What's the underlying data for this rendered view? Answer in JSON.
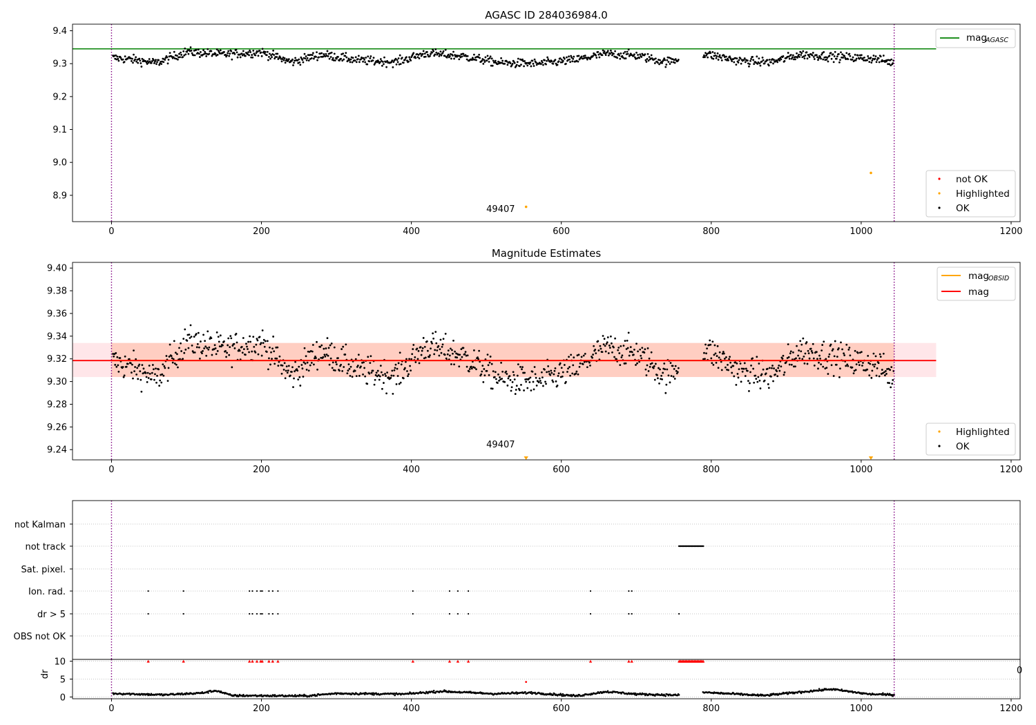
{
  "chart_data": [
    {
      "type": "scatter",
      "title": "AGASC ID 284036984.0",
      "xlim": [
        -52,
        1212
      ],
      "ylim": [
        8.82,
        9.42
      ],
      "xticks": [
        0,
        200,
        400,
        600,
        800,
        1000,
        1200
      ],
      "yticks": [
        8.9,
        9.0,
        9.1,
        9.2,
        9.3,
        9.4
      ],
      "vlines": [
        0,
        1044
      ],
      "hline": {
        "name": "mag_AGASC",
        "value": 9.345,
        "x_end": 1100,
        "color": "#008000"
      },
      "series": [
        {
          "name": "not OK",
          "color": "#ff0000",
          "points": []
        },
        {
          "name": "Highlighted",
          "color": "#ffa500",
          "points": [
            [
              553,
              8.865
            ],
            [
              1013,
              8.968
            ]
          ]
        },
        {
          "name": "OK",
          "color": "#000000",
          "profile": {
            "x_start": 2,
            "x_end": 1044,
            "gap": [
              757,
              789
            ],
            "scatter": 0.012,
            "levels": [
              [
                0,
                9.318
              ],
              [
                30,
                9.312
              ],
              [
                60,
                9.302
              ],
              [
                100,
                9.336
              ],
              [
                150,
                9.328
              ],
              [
                200,
                9.335
              ],
              [
                240,
                9.305
              ],
              [
                280,
                9.328
              ],
              [
                330,
                9.31
              ],
              [
                380,
                9.305
              ],
              [
                420,
                9.332
              ],
              [
                470,
                9.322
              ],
              [
                520,
                9.302
              ],
              [
                570,
                9.3
              ],
              [
                620,
                9.312
              ],
              [
                660,
                9.33
              ],
              [
                700,
                9.325
              ],
              [
                740,
                9.305
              ],
              [
                790,
                9.33
              ],
              [
                840,
                9.308
              ],
              [
                880,
                9.305
              ],
              [
                920,
                9.328
              ],
              [
                960,
                9.322
              ],
              [
                990,
                9.318
              ],
              [
                1020,
                9.315
              ],
              [
                1044,
                9.302
              ]
            ]
          }
        }
      ],
      "annotations": [
        {
          "text": "49407",
          "x": 500,
          "y": 8.83
        }
      ],
      "legend_line": {
        "label": "mag",
        "subscript": "AGASC",
        "position": "upper right"
      },
      "legend_points": {
        "labels": [
          "not OK",
          "Highlighted",
          "OK"
        ],
        "position": "lower right"
      }
    },
    {
      "type": "scatter",
      "title": "Magnitude Estimates",
      "xlim": [
        -52,
        1212
      ],
      "ylim": [
        9.231,
        9.405
      ],
      "xticks": [
        0,
        200,
        400,
        600,
        800,
        1000,
        1200
      ],
      "yticks": [
        9.24,
        9.26,
        9.28,
        9.3,
        9.32,
        9.34,
        9.36,
        9.38,
        9.4
      ],
      "vlines": [
        0,
        1044
      ],
      "band_outer": {
        "x": [
          -52,
          1100
        ],
        "y": [
          9.304,
          9.334
        ],
        "color": "#ffb6c1"
      },
      "band_inner": {
        "x": [
          0,
          1044
        ],
        "y": [
          9.304,
          9.334
        ],
        "color": "#ffa07a"
      },
      "lines": [
        {
          "name": "mag_OBSID",
          "color": "#ffa500",
          "value": 9.3185,
          "x": [
            0,
            1044
          ]
        },
        {
          "name": "mag",
          "color": "#ff0000",
          "value": 9.3185,
          "x": [
            -52,
            1100
          ]
        }
      ],
      "series": [
        {
          "name": "Highlighted",
          "color": "#ffa500",
          "marker": "triangle-down",
          "points": [
            [
              553,
              9.2325
            ],
            [
              1013,
              9.2325
            ]
          ]
        },
        {
          "name": "OK",
          "color": "#000000",
          "profile": "same as panel 1"
        }
      ],
      "annotations": [
        {
          "text": "49407",
          "x": 500,
          "y": 9.236
        }
      ],
      "legend_lines": {
        "labels": [
          {
            "label": "mag",
            "subscript": "OBSID"
          },
          {
            "label": "mag",
            "subscript": ""
          }
        ],
        "position": "upper right"
      },
      "legend_points": {
        "labels": [
          "Highlighted",
          "OK"
        ],
        "position": "lower right"
      }
    },
    {
      "type": "scatter",
      "title": "",
      "xlim": [
        -52,
        1212
      ],
      "xticks": [
        0,
        200,
        400,
        600,
        800,
        1000,
        1200
      ],
      "vlines": [
        0,
        1044
      ],
      "categories": [
        "not Kalman",
        "not track",
        "Sat. pixel.",
        "Ion. rad.",
        "dr > 5",
        "OBS not OK"
      ],
      "flags": {
        "not track": [
          757,
          790
        ],
        "Ion. rad.": [
          49,
          96,
          184,
          188,
          194,
          199,
          201,
          210,
          215,
          222,
          402,
          451,
          462,
          476,
          639,
          690,
          694
        ],
        "dr > 5": [
          49,
          96,
          184,
          188,
          194,
          199,
          201,
          210,
          215,
          222,
          402,
          451,
          462,
          476,
          639,
          690,
          694,
          757
        ]
      },
      "dr_panel": {
        "ylabel": "dr",
        "yticks": [
          0,
          5,
          10
        ],
        "ylim": [
          -0.5,
          10.5
        ],
        "limit_markers": [
          49,
          96,
          184,
          188,
          194,
          199,
          201,
          210,
          215,
          222,
          402,
          451,
          462,
          476,
          639,
          690,
          694
        ],
        "limit_band": [
          757,
          790
        ],
        "red_point": [
          553,
          4.2
        ],
        "values_profile": [
          [
            0,
            1.0
          ],
          [
            70,
            0.6
          ],
          [
            120,
            1.1
          ],
          [
            140,
            1.8
          ],
          [
            160,
            0.4
          ],
          [
            260,
            0.3
          ],
          [
            300,
            1.0
          ],
          [
            390,
            0.8
          ],
          [
            440,
            1.6
          ],
          [
            510,
            0.9
          ],
          [
            560,
            1.2
          ],
          [
            620,
            0.3
          ],
          [
            660,
            1.5
          ],
          [
            700,
            0.8
          ],
          [
            757,
            0.5
          ],
          [
            790,
            1.3
          ],
          [
            870,
            0.4
          ],
          [
            960,
            2.2
          ],
          [
            1010,
            0.8
          ],
          [
            1044,
            0.6
          ]
        ]
      },
      "stray_text": "0"
    }
  ]
}
